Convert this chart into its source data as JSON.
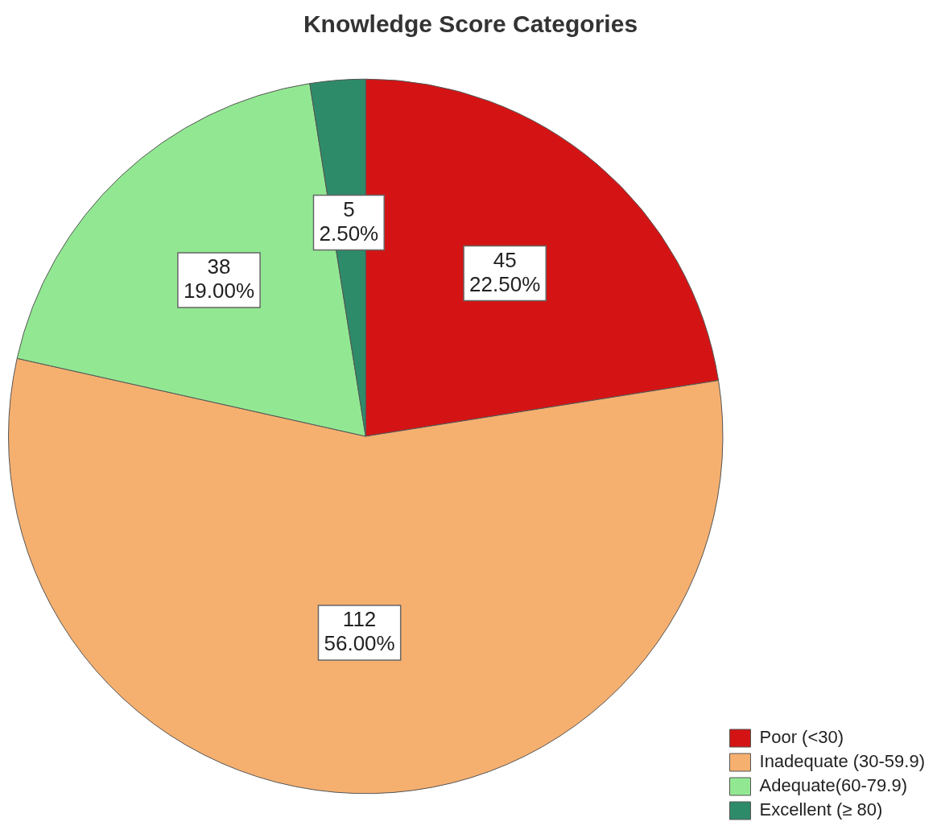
{
  "chart_data": {
    "type": "pie",
    "title": "Knowledge Score Categories",
    "categories": [
      "Poor (<30)",
      "Inadequate (30-59.9)",
      "Adequate(60-79.9)",
      "Excellent (≥ 80)"
    ],
    "values": [
      45,
      112,
      38,
      5
    ],
    "colors": [
      "#d41414",
      "#f5b070",
      "#92e892",
      "#2e8b6a"
    ],
    "value_labels": [
      "45\n22.50%",
      "112\n56.00%",
      "38\n19.00%",
      "5\n2.50%"
    ],
    "legend": "bottom right"
  }
}
